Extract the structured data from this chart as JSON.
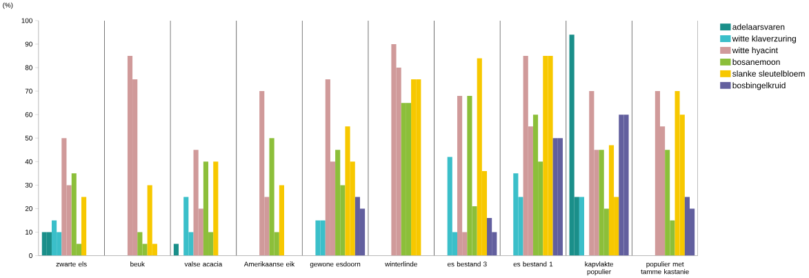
{
  "chart_data": {
    "type": "bar",
    "ylabel": "(%)",
    "categories": [
      "zwarte els",
      "beuk",
      "valse acacia",
      "Amerikaanse eik",
      "gewone esdoorn",
      "winterlinde",
      "es bestand 3",
      "es bestand 1",
      "kapvlakte populier",
      "populier met tamme kastanie"
    ],
    "ylim": [
      0,
      100
    ],
    "yticks": [
      0,
      10,
      20,
      30,
      40,
      50,
      60,
      70,
      80,
      90,
      100
    ],
    "legend": "right",
    "series": [
      {
        "name": "adelaarsvaren",
        "color": "#1a8f8a",
        "values": [
          10,
          null,
          5,
          null,
          null,
          null,
          null,
          null,
          94,
          null
        ]
      },
      {
        "color": "#1a8f8a",
        "values": [
          10,
          null,
          null,
          null,
          null,
          null,
          null,
          null,
          25,
          null
        ]
      },
      {
        "name": "witte klaverzuring",
        "color": "#3bbfc9",
        "values": [
          15,
          null,
          25,
          null,
          15,
          null,
          42,
          35,
          25,
          null
        ]
      },
      {
        "color": "#3bbfc9",
        "values": [
          10,
          null,
          10,
          null,
          15,
          null,
          10,
          25,
          null,
          null
        ]
      },
      {
        "name": "witte hyacint",
        "color": "#d09a9a",
        "values": [
          50,
          85,
          45,
          70,
          75,
          90,
          68,
          85,
          70,
          70
        ]
      },
      {
        "color": "#d09a9a",
        "values": [
          30,
          75,
          20,
          25,
          40,
          80,
          10,
          55,
          45,
          55
        ]
      },
      {
        "name": "bosanemoon",
        "color": "#8cbf3a",
        "values": [
          35,
          10,
          40,
          50,
          45,
          65,
          68,
          60,
          45,
          45
        ]
      },
      {
        "color": "#8cbf3a",
        "values": [
          5,
          5,
          10,
          10,
          30,
          65,
          21,
          40,
          20,
          15
        ]
      },
      {
        "name": "slanke sleutelbloem",
        "color": "#f7c800",
        "values": [
          25,
          30,
          40,
          30,
          55,
          75,
          84,
          85,
          47,
          70
        ]
      },
      {
        "color": "#f7c800",
        "values": [
          null,
          5,
          null,
          null,
          40,
          75,
          36,
          85,
          25,
          60
        ]
      },
      {
        "name": "bosbingelkruid",
        "color": "#625f9e",
        "values": [
          null,
          null,
          null,
          null,
          25,
          null,
          16,
          50,
          60,
          25
        ]
      },
      {
        "color": "#625f9e",
        "values": [
          null,
          null,
          null,
          null,
          20,
          null,
          10,
          50,
          60,
          20
        ]
      }
    ]
  }
}
